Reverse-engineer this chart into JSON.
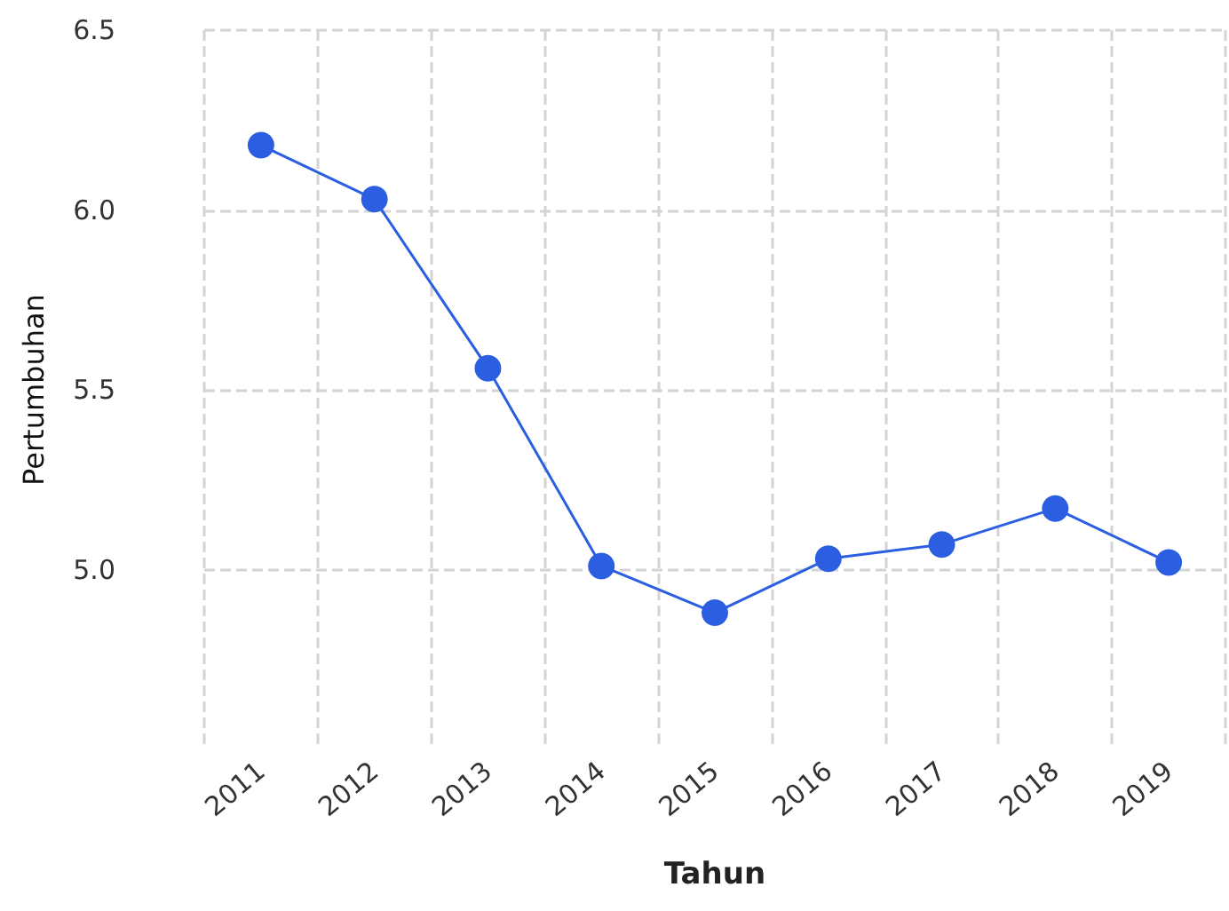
{
  "chart_data": {
    "type": "line",
    "xlabel": "Tahun",
    "ylabel": "Pertumbuhan",
    "categories": [
      "2011",
      "2012",
      "2013",
      "2014",
      "2015",
      "2016",
      "2017",
      "2018",
      "2019"
    ],
    "series": [
      {
        "color": "#2b5ee0",
        "values": [
          6.18,
          6.03,
          5.56,
          5.01,
          4.88,
          5.03,
          5.07,
          5.17,
          5.02
        ]
      }
    ],
    "ylim": [
      4.5,
      6.5
    ],
    "yticks": [
      {
        "value": 5,
        "label": "5.0"
      },
      5.5,
      {
        "value": 6,
        "label": "6.0"
      },
      6.5
    ],
    "grid": true,
    "marker": "circle",
    "line_style": "solid"
  }
}
